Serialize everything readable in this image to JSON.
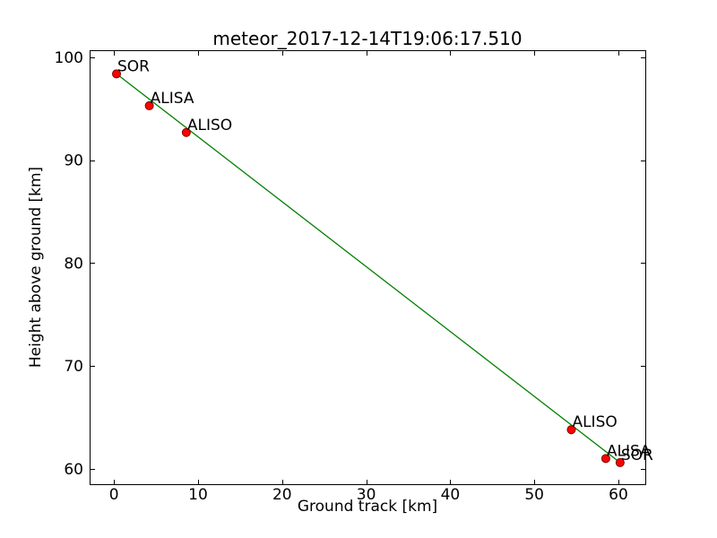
{
  "chart_data": {
    "type": "scatter",
    "title": "meteor_2017-12-14T19:06:17.510",
    "xlabel": "Ground track [km]",
    "ylabel": "Height above ground [km]",
    "xlim": [
      -2.9,
      63.2
    ],
    "ylim": [
      58.5,
      100.7
    ],
    "xticks": [
      0,
      10,
      20,
      30,
      40,
      50,
      60
    ],
    "yticks": [
      60,
      70,
      80,
      90,
      100
    ],
    "grid": false,
    "legend": null,
    "colors": {
      "trajectory_line": "#008000",
      "marker_face": "#ff0000",
      "marker_edge": "#7f0000",
      "axes": "#000000",
      "background": "#ffffff"
    },
    "series": [
      {
        "name": "trajectory-fit-line",
        "type": "line",
        "x": [
          0.3,
          60.2
        ],
        "y": [
          98.4,
          60.6
        ]
      },
      {
        "name": "station-sightline-points",
        "type": "scatter",
        "points": [
          {
            "label": "SOR",
            "x": 0.3,
            "y": 98.4
          },
          {
            "label": "ALISA",
            "x": 4.2,
            "y": 95.3
          },
          {
            "label": "ALISO",
            "x": 8.6,
            "y": 92.7
          },
          {
            "label": "ALISO",
            "x": 54.4,
            "y": 63.8
          },
          {
            "label": "ALISA",
            "x": 58.5,
            "y": 61.0
          },
          {
            "label": "SOR",
            "x": 60.2,
            "y": 60.6
          }
        ]
      }
    ]
  }
}
